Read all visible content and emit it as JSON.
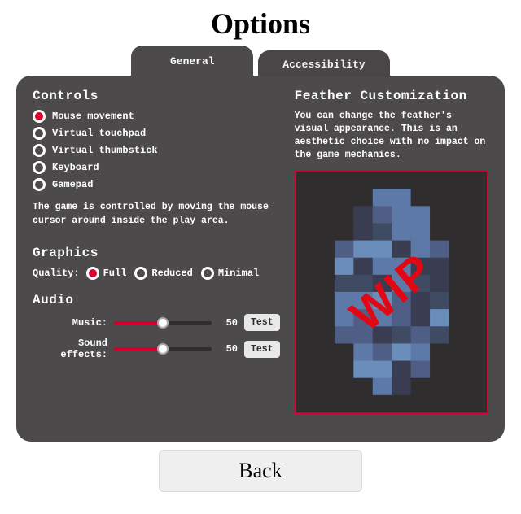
{
  "title": "Options",
  "tabs": {
    "general": "General",
    "accessibility": "Accessibility",
    "active": "general"
  },
  "controls": {
    "heading": "Controls",
    "options": [
      {
        "label": "Mouse movement",
        "selected": true
      },
      {
        "label": "Virtual touchpad",
        "selected": false
      },
      {
        "label": "Virtual thumbstick",
        "selected": false
      },
      {
        "label": "Keyboard",
        "selected": false
      },
      {
        "label": "Gamepad",
        "selected": false
      }
    ],
    "description": "The game is controlled by moving the mouse cursor around inside the play area."
  },
  "graphics": {
    "heading": "Graphics",
    "quality_label": "Quality:",
    "options": [
      {
        "label": "Full",
        "selected": true
      },
      {
        "label": "Reduced",
        "selected": false
      },
      {
        "label": "Minimal",
        "selected": false
      }
    ]
  },
  "audio": {
    "heading": "Audio",
    "music_label": "Music:",
    "music_value": 50,
    "sfx_label": "Sound effects:",
    "sfx_value": 50,
    "test_label": "Test",
    "slider": {
      "min": 0,
      "max": 100,
      "fill_color": "#d6002c",
      "track_color": "#2f2d2e"
    }
  },
  "feather": {
    "heading": "Feather Customization",
    "description": "You can change the feather's visual appearance. This is an aesthetic choice with no impact on the game mechanics.",
    "wip_label": "WIP",
    "border_color": "#d6002c",
    "pixel_colors": [
      "#2f2d2e",
      "#3a3d52",
      "#4e5e85",
      "#5d79a7",
      "#6a8dba",
      "#3f4a63"
    ]
  },
  "back_label": "Back",
  "colors": {
    "panel_bg": "#4c4a4b",
    "accent": "#d6002c",
    "text": "#ffffff",
    "page_bg": "#ffffff",
    "button_bg": "#efefef"
  }
}
